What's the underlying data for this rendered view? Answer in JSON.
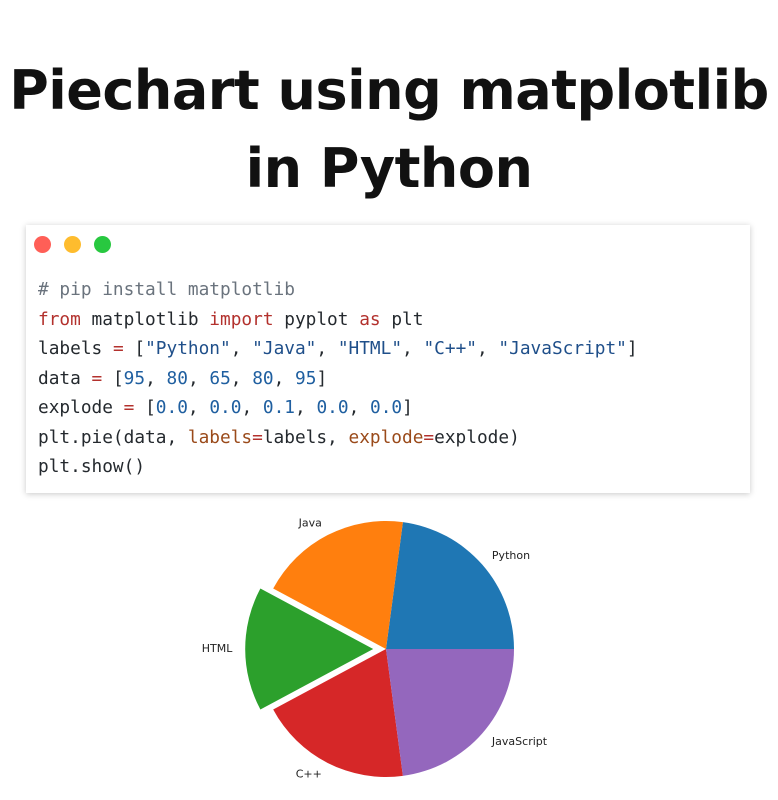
{
  "title": {
    "line1": "Piechart using matplotlib",
    "line2": "in Python"
  },
  "window": {
    "dots": [
      {
        "name": "close",
        "color": "#ff5f57"
      },
      {
        "name": "minimize",
        "color": "#febc2e"
      },
      {
        "name": "maximize",
        "color": "#28c840"
      }
    ]
  },
  "code": {
    "lines": [
      [
        {
          "t": "# pip install matplotlib",
          "c": "comment"
        }
      ],
      [
        {
          "t": "from",
          "c": "kw"
        },
        {
          "t": " matplotlib ",
          "c": ""
        },
        {
          "t": "import",
          "c": "kw"
        },
        {
          "t": " pyplot ",
          "c": ""
        },
        {
          "t": "as",
          "c": "kw"
        },
        {
          "t": " plt",
          "c": ""
        }
      ],
      [
        {
          "t": "labels ",
          "c": ""
        },
        {
          "t": "=",
          "c": "op"
        },
        {
          "t": " [",
          "c": ""
        },
        {
          "t": "\"Python\"",
          "c": "str"
        },
        {
          "t": ", ",
          "c": ""
        },
        {
          "t": "\"Java\"",
          "c": "str"
        },
        {
          "t": ", ",
          "c": ""
        },
        {
          "t": "\"HTML\"",
          "c": "str"
        },
        {
          "t": ", ",
          "c": ""
        },
        {
          "t": "\"C++\"",
          "c": "str"
        },
        {
          "t": ", ",
          "c": ""
        },
        {
          "t": "\"JavaScript\"",
          "c": "str"
        },
        {
          "t": "]",
          "c": ""
        }
      ],
      [
        {
          "t": "data ",
          "c": ""
        },
        {
          "t": "=",
          "c": "op"
        },
        {
          "t": " [",
          "c": ""
        },
        {
          "t": "95",
          "c": "num"
        },
        {
          "t": ", ",
          "c": ""
        },
        {
          "t": "80",
          "c": "num"
        },
        {
          "t": ", ",
          "c": ""
        },
        {
          "t": "65",
          "c": "num"
        },
        {
          "t": ", ",
          "c": ""
        },
        {
          "t": "80",
          "c": "num"
        },
        {
          "t": ", ",
          "c": ""
        },
        {
          "t": "95",
          "c": "num"
        },
        {
          "t": "]",
          "c": ""
        }
      ],
      [
        {
          "t": "explode ",
          "c": ""
        },
        {
          "t": "=",
          "c": "op"
        },
        {
          "t": " [",
          "c": ""
        },
        {
          "t": "0.0",
          "c": "num"
        },
        {
          "t": ", ",
          "c": ""
        },
        {
          "t": "0.0",
          "c": "num"
        },
        {
          "t": ", ",
          "c": ""
        },
        {
          "t": "0.1",
          "c": "num"
        },
        {
          "t": ", ",
          "c": ""
        },
        {
          "t": "0.0",
          "c": "num"
        },
        {
          "t": ", ",
          "c": ""
        },
        {
          "t": "0.0",
          "c": "num"
        },
        {
          "t": "]",
          "c": ""
        }
      ],
      [
        {
          "t": "plt.pie(data, ",
          "c": ""
        },
        {
          "t": "labels",
          "c": "param"
        },
        {
          "t": "=",
          "c": "op"
        },
        {
          "t": "labels, ",
          "c": ""
        },
        {
          "t": "explode",
          "c": "param"
        },
        {
          "t": "=",
          "c": "op"
        },
        {
          "t": "explode)",
          "c": ""
        }
      ],
      [
        {
          "t": "plt.show()",
          "c": ""
        }
      ]
    ]
  },
  "chart_data": {
    "type": "pie",
    "categories": [
      "Python",
      "Java",
      "HTML",
      "C++",
      "JavaScript"
    ],
    "values": [
      95,
      80,
      65,
      80,
      95
    ],
    "explode": [
      0.0,
      0.0,
      0.1,
      0.0,
      0.0
    ],
    "colors": [
      "#1f77b4",
      "#ff7f0e",
      "#2ca02c",
      "#d62728",
      "#9467bd"
    ],
    "start_angle": 0,
    "direction": "counterclockwise"
  }
}
